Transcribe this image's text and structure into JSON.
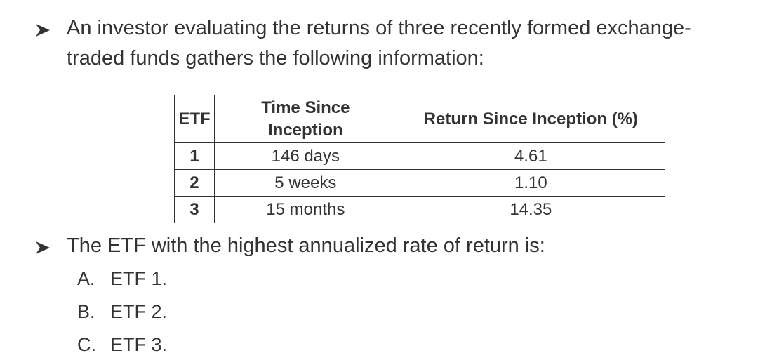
{
  "question": {
    "intro_lines": [
      "An investor evaluating the returns of three recently formed exchange-",
      "traded funds gathers the following information:"
    ],
    "table": {
      "header": [
        "ETF",
        "Time Since Inception",
        "Return Since Inception (%)"
      ],
      "rows": [
        [
          "1",
          "146 days",
          "4.61"
        ],
        [
          "2",
          "5 weeks",
          "1.10"
        ],
        [
          "3",
          "15 months",
          "14.35"
        ]
      ]
    },
    "prompt": "The ETF with the highest annualized rate of return is:",
    "options": [
      {
        "letter": "A.",
        "text": "ETF 1."
      },
      {
        "letter": "B.",
        "text": "ETF 2."
      },
      {
        "letter": "C.",
        "text": "ETF 3."
      }
    ]
  }
}
